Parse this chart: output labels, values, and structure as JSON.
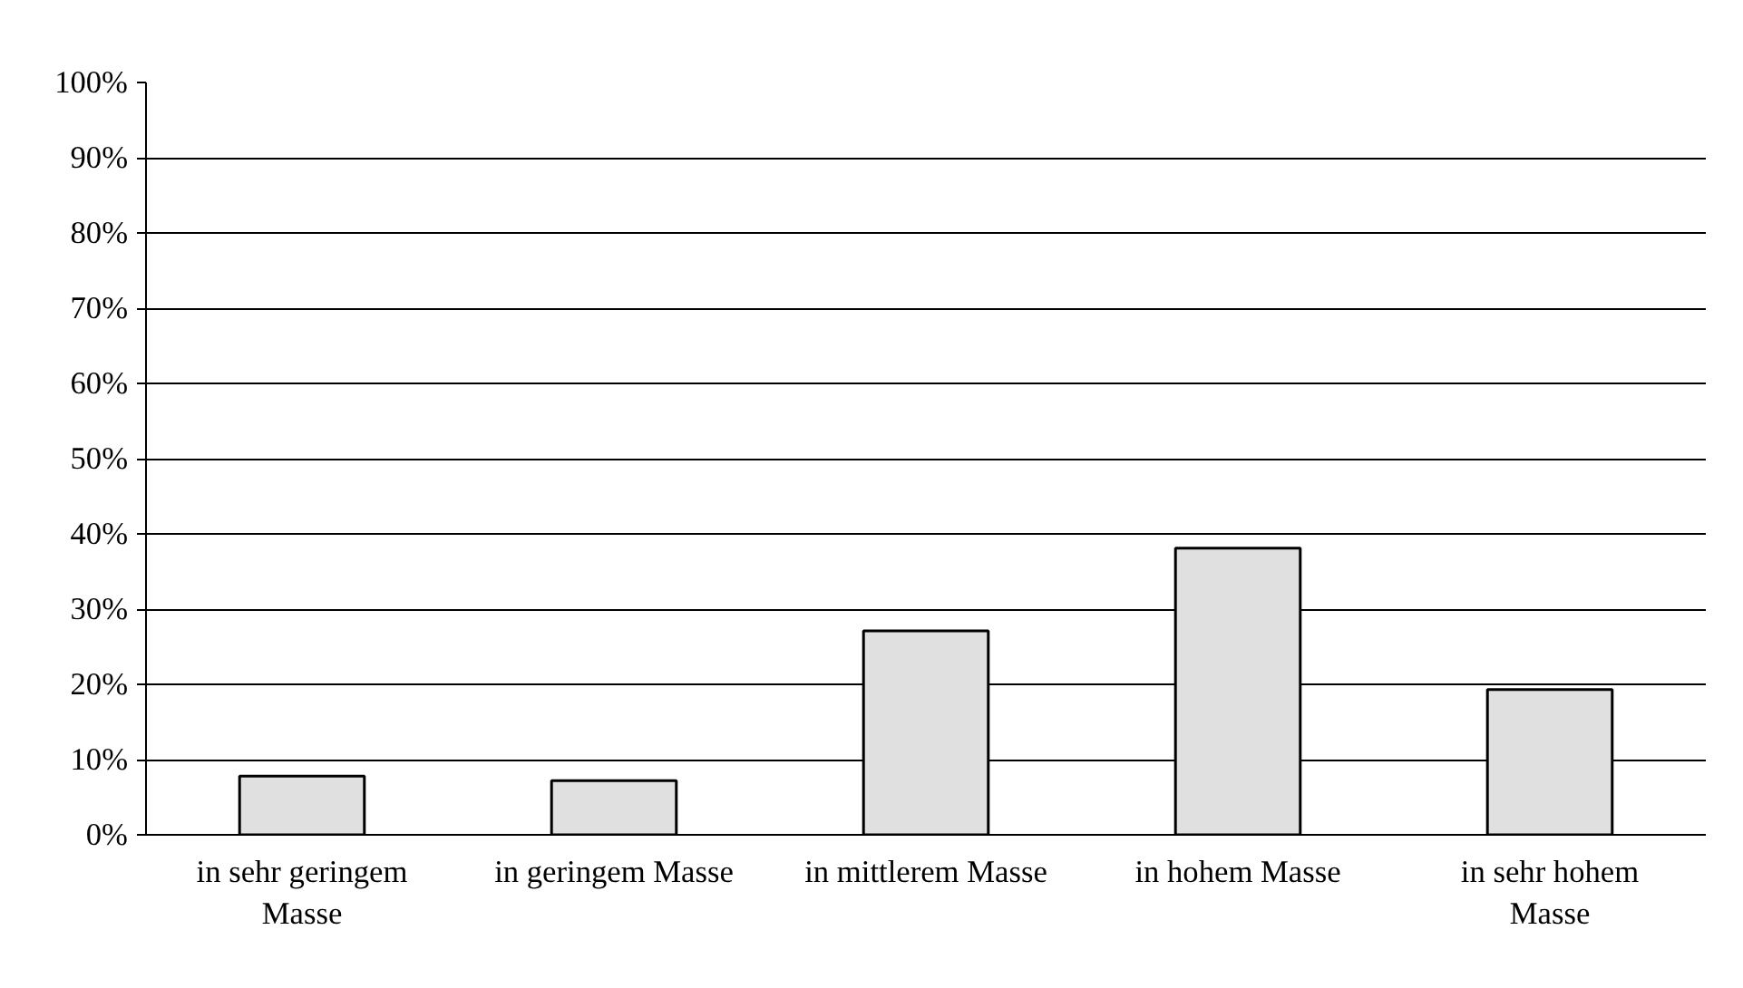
{
  "chart_data": {
    "type": "bar",
    "categories": [
      "in sehr geringem Masse",
      "in geringem Masse",
      "in mittlerem Masse",
      "in hohem Masse",
      "in sehr hohem Masse"
    ],
    "values": [
      7.8,
      7.2,
      27.1,
      38.1,
      19.3
    ],
    "color": "#e0e0e0",
    "ylim": [
      0,
      100
    ],
    "yticks": [
      {
        "value": 0,
        "label": "0%"
      },
      {
        "value": 10,
        "label": "10%"
      },
      {
        "value": 20,
        "label": "20%"
      },
      {
        "value": 30,
        "label": "30%"
      },
      {
        "value": 40,
        "label": "40%"
      },
      {
        "value": 50,
        "label": "50%"
      },
      {
        "value": 60,
        "label": "60%"
      },
      {
        "value": 70,
        "label": "70%"
      },
      {
        "value": 80,
        "label": "80%"
      },
      {
        "value": 90,
        "label": "90%"
      },
      {
        "value": 100,
        "label": "100%"
      }
    ],
    "grid": "y"
  }
}
